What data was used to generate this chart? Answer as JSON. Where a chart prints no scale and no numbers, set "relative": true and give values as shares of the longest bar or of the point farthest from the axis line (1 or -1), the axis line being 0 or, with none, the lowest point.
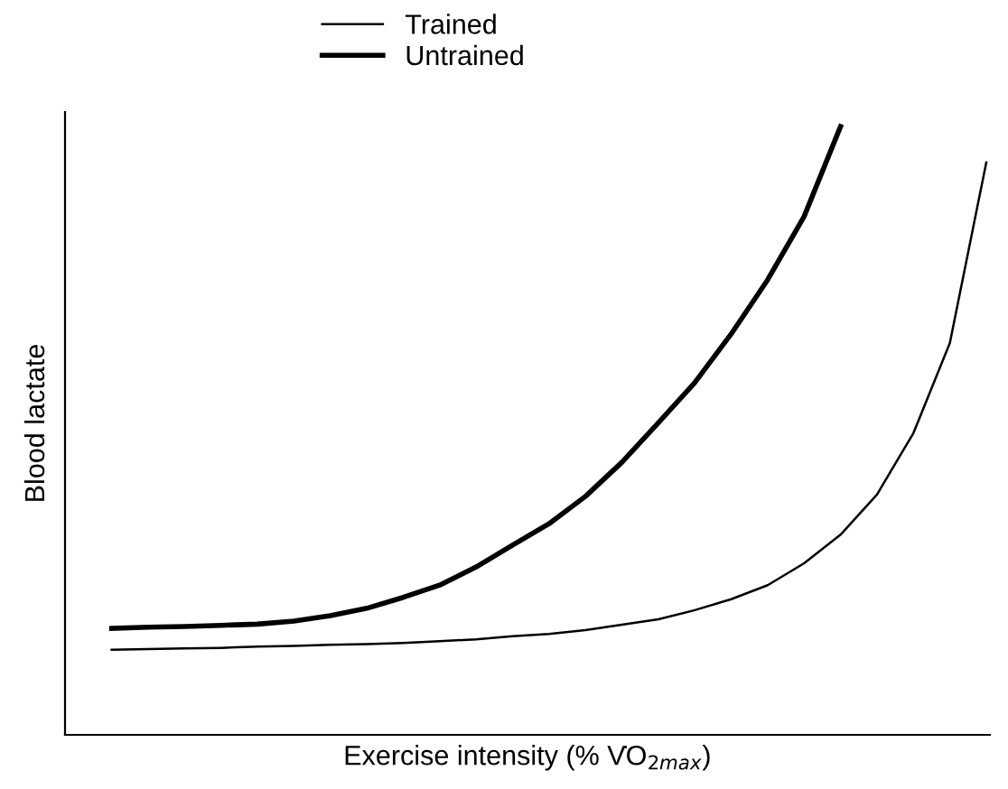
{
  "chart_data": {
    "type": "line",
    "relative": true,
    "xlabel": "Exercise intensity (% V̇O$_{2max}$)",
    "ylabel": "Blood lactate",
    "categories": [
      null,
      null,
      null,
      null,
      null,
      null,
      null,
      null,
      null,
      null,
      null,
      null,
      null,
      null,
      null,
      null,
      null,
      null,
      null,
      null,
      null,
      null,
      null,
      null,
      null
    ],
    "series": [
      {
        "name": "Trained",
        "color": "#000000",
        "values": [
          0.14,
          0.141,
          0.142,
          0.143,
          0.145,
          0.146,
          0.148,
          0.149,
          0.151,
          0.154,
          0.157,
          0.162,
          0.166,
          0.172,
          0.181,
          0.19,
          0.205,
          0.223,
          0.246,
          0.282,
          0.329,
          0.395,
          0.496,
          0.644,
          0.941
        ]
      },
      {
        "name": "Untrained",
        "color": "#000000",
        "values": [
          0.175,
          0.177,
          0.178,
          0.18,
          0.182,
          0.187,
          0.196,
          0.208,
          0.226,
          0.246,
          0.276,
          0.312,
          0.347,
          0.392,
          0.448,
          0.513,
          0.579,
          0.659,
          0.748,
          0.852,
          1.0,
          null,
          null,
          null,
          null
        ]
      }
    ],
    "legend": "top",
    "marker": "none",
    "line_style": "solid"
  }
}
